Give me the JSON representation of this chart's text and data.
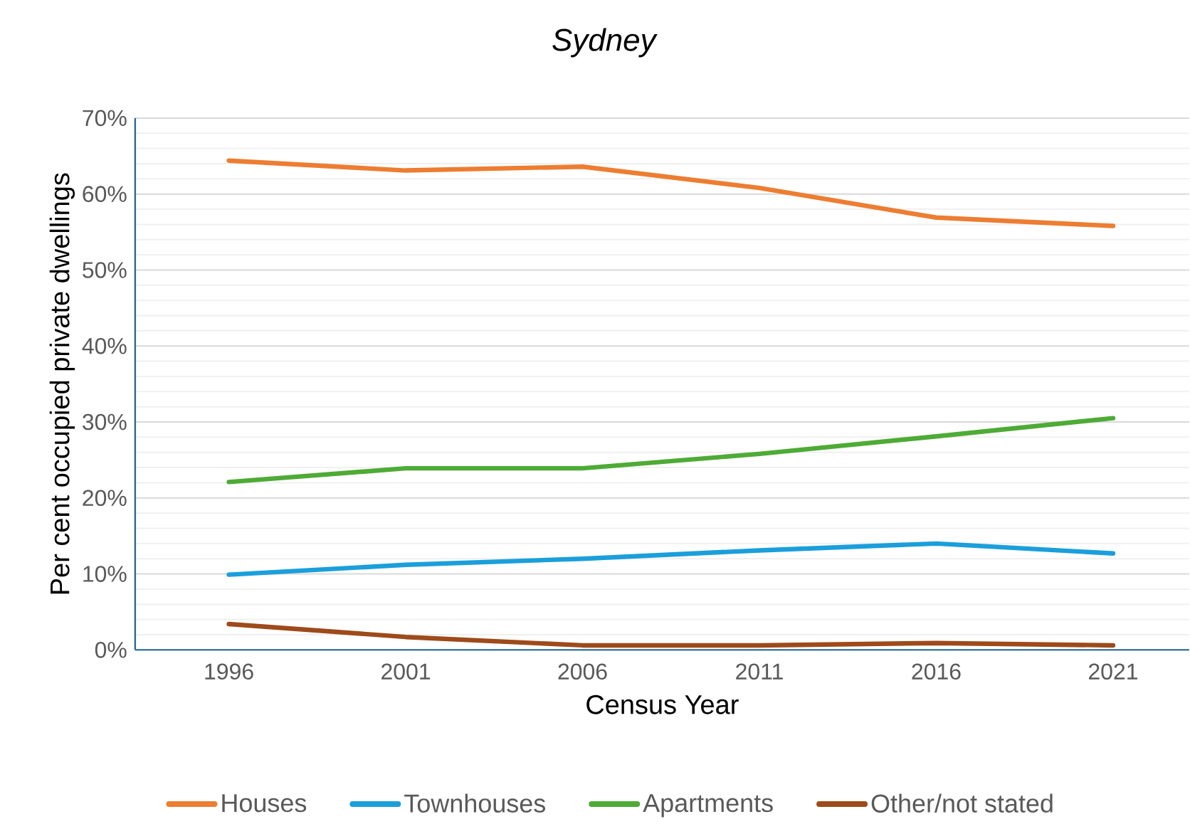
{
  "chart_data": {
    "type": "line",
    "title": "*Sydney*",
    "xlabel": "Census Year",
    "ylabel": "Per cent occupied private dwellings",
    "categories": [
      "1996",
      "2001",
      "2006",
      "2011",
      "2016",
      "2021"
    ],
    "series": [
      {
        "name": "Houses",
        "color": "#ed7d31",
        "values": [
          64.4,
          63.1,
          63.6,
          60.8,
          56.9,
          55.8
        ]
      },
      {
        "name": "Townhouses",
        "color": "#1a9fdb",
        "values": [
          9.9,
          11.2,
          12.0,
          13.1,
          14.0,
          12.7
        ]
      },
      {
        "name": "Apartments",
        "color": "#4eab35",
        "values": [
          22.1,
          23.9,
          23.9,
          25.8,
          28.1,
          30.5
        ]
      },
      {
        "name": "Other/not stated",
        "color": "#9e4a1a",
        "values": [
          3.4,
          1.7,
          0.6,
          0.6,
          0.9,
          0.6
        ]
      }
    ],
    "ylim": [
      0,
      70
    ],
    "yticks": [
      {
        "value": 0,
        "label": "0%"
      },
      {
        "value": 10,
        "label": "10%"
      },
      {
        "value": 20,
        "label": "20%"
      },
      {
        "value": 30,
        "label": "30%"
      },
      {
        "value": 40,
        "label": "40%"
      },
      {
        "value": 50,
        "label": "50%"
      },
      {
        "value": 60,
        "label": "60%"
      },
      {
        "value": 70,
        "label": "70%"
      }
    ],
    "grid": "y",
    "legend": "bottom",
    "marker": "none",
    "line_style": "solid"
  }
}
